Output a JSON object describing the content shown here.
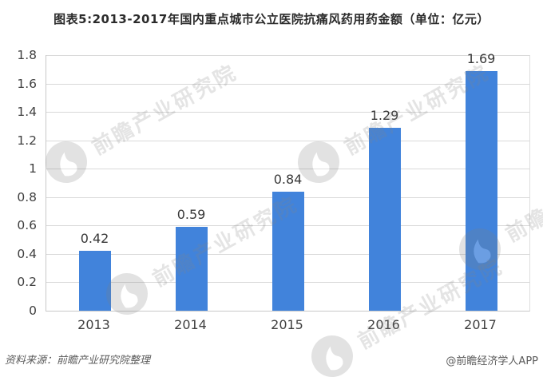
{
  "title": "图表5:2013-2017年国内重点城市公立医院抗痛风药用药金额（单位：亿元）",
  "chart_data": {
    "type": "bar",
    "title": "图表5:2013-2017年国内重点城市公立医院抗痛风药用药金额（单位：亿元）",
    "categories": [
      "2013",
      "2014",
      "2015",
      "2016",
      "2017"
    ],
    "values": [
      0.42,
      0.59,
      0.84,
      1.29,
      1.69
    ],
    "value_labels": [
      "0.42",
      "0.59",
      "0.84",
      "1.29",
      "1.69"
    ],
    "xlabel": "",
    "ylabel": "",
    "unit": "亿元",
    "ylim": [
      0,
      1.8
    ],
    "ytick_step": 0.2,
    "ytick_labels": [
      "0",
      "0.2",
      "0.4",
      "0.6",
      "0.8",
      "1",
      "1.2",
      "1.4",
      "1.6",
      "1.8"
    ],
    "grid": true,
    "legend": null,
    "bar_color": "#4183db",
    "grid_color": "#d9d9d9"
  },
  "watermark": {
    "text": "前瞻产业研究院"
  },
  "footer": {
    "source": "资料来源：前瞻产业研究院整理",
    "credit": "@前瞻经济学人APP"
  },
  "colors": {
    "bar": "#4183db",
    "grid": "#d9d9d9",
    "axis_text": "#3f3f3f",
    "title_text": "#2b2b2b",
    "footer_text": "#5a5a5a"
  }
}
